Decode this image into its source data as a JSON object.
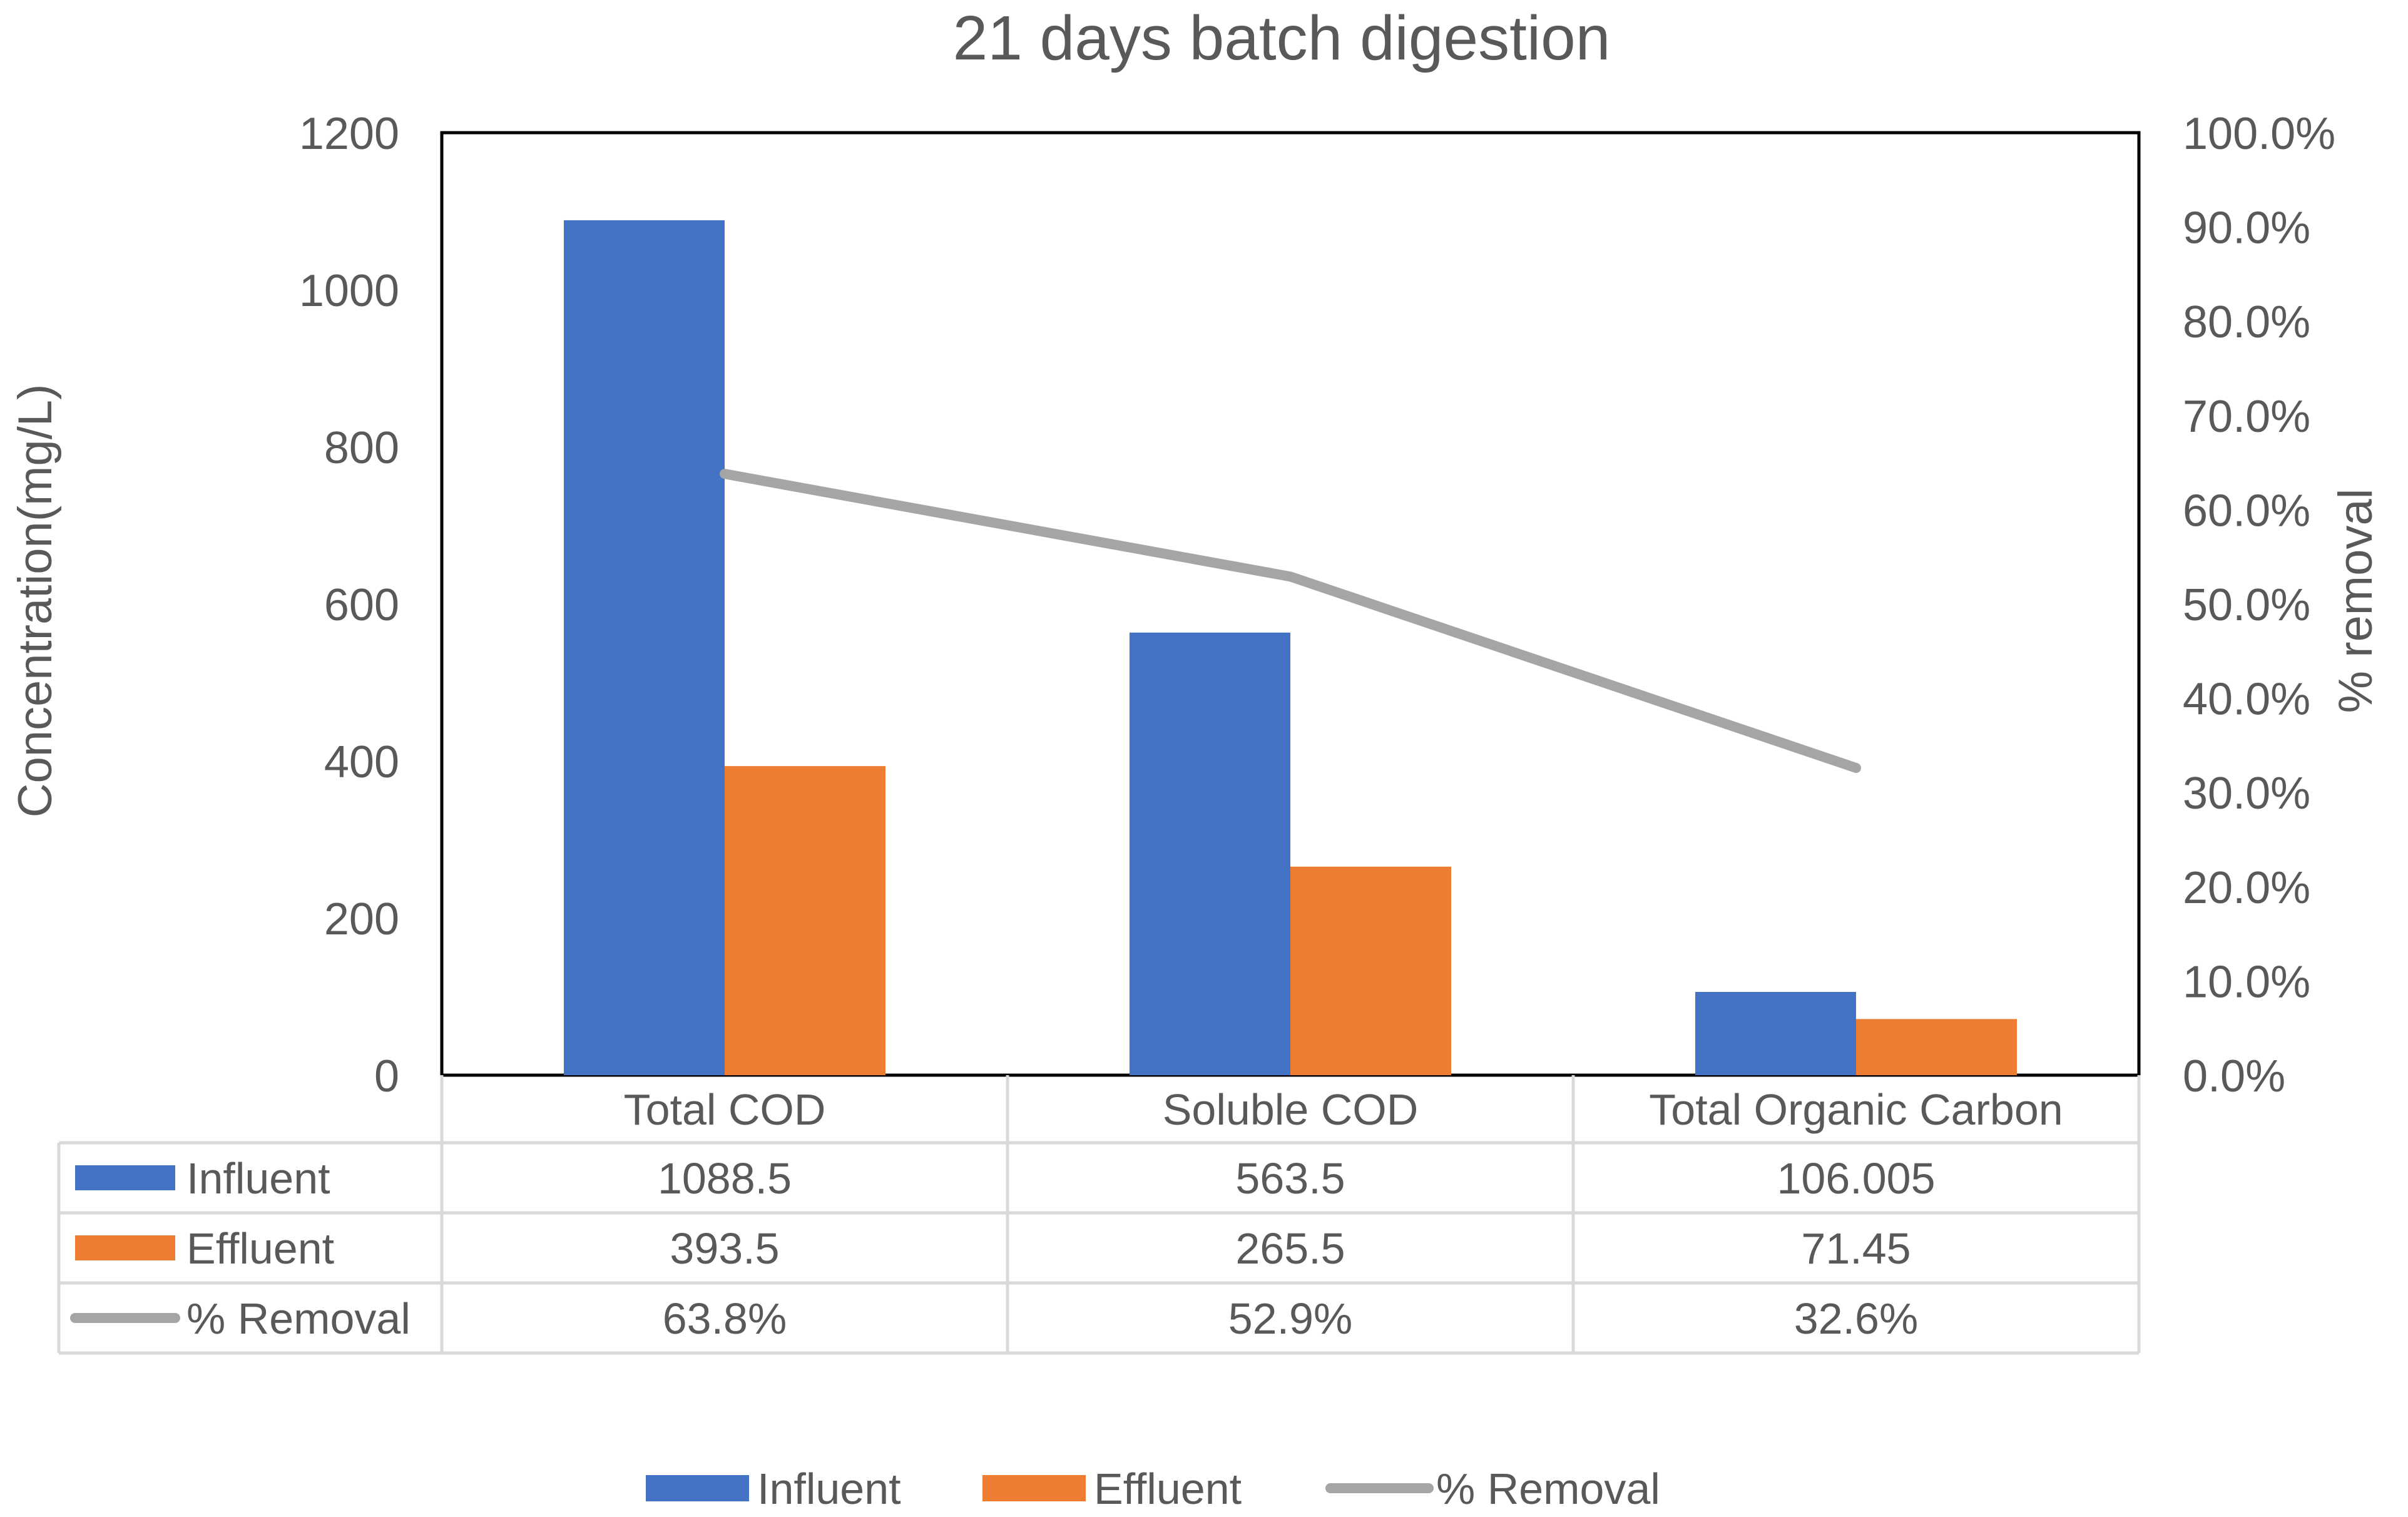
{
  "chart_data": {
    "type": "bar",
    "title": "21 days batch digestion",
    "categories": [
      "Total COD",
      "Soluble COD",
      "Total Organic Carbon"
    ],
    "series": [
      {
        "name": "Influent",
        "kind": "bar",
        "axis": "left",
        "color": "#4472C4",
        "values": [
          1088.5,
          563.5,
          106.005
        ],
        "value_labels": [
          "1088.5",
          "563.5",
          "106.005"
        ]
      },
      {
        "name": "Effluent",
        "kind": "bar",
        "axis": "left",
        "color": "#ED7D31",
        "values": [
          393.5,
          265.5,
          71.45
        ],
        "value_labels": [
          "393.5",
          "265.5",
          "71.45"
        ]
      },
      {
        "name": "% Removal",
        "kind": "line",
        "axis": "right",
        "color": "#A5A5A5",
        "values": [
          0.638,
          0.529,
          0.326
        ],
        "value_labels": [
          "63.8%",
          "52.9%",
          "32.6%"
        ]
      }
    ],
    "ylabel": "Concentration(mg/L)",
    "ylim": [
      0,
      1200
    ],
    "yticks": [
      "0",
      "200",
      "400",
      "600",
      "800",
      "1000",
      "1200"
    ],
    "y2label": "% removal",
    "y2lim": [
      0,
      1
    ],
    "y2ticks": [
      "0.0%",
      "10.0%",
      "20.0%",
      "30.0%",
      "40.0%",
      "50.0%",
      "60.0%",
      "70.0%",
      "80.0%",
      "90.0%",
      "100.0%"
    ],
    "grid": false,
    "data_table": true,
    "legend": "bottom"
  }
}
